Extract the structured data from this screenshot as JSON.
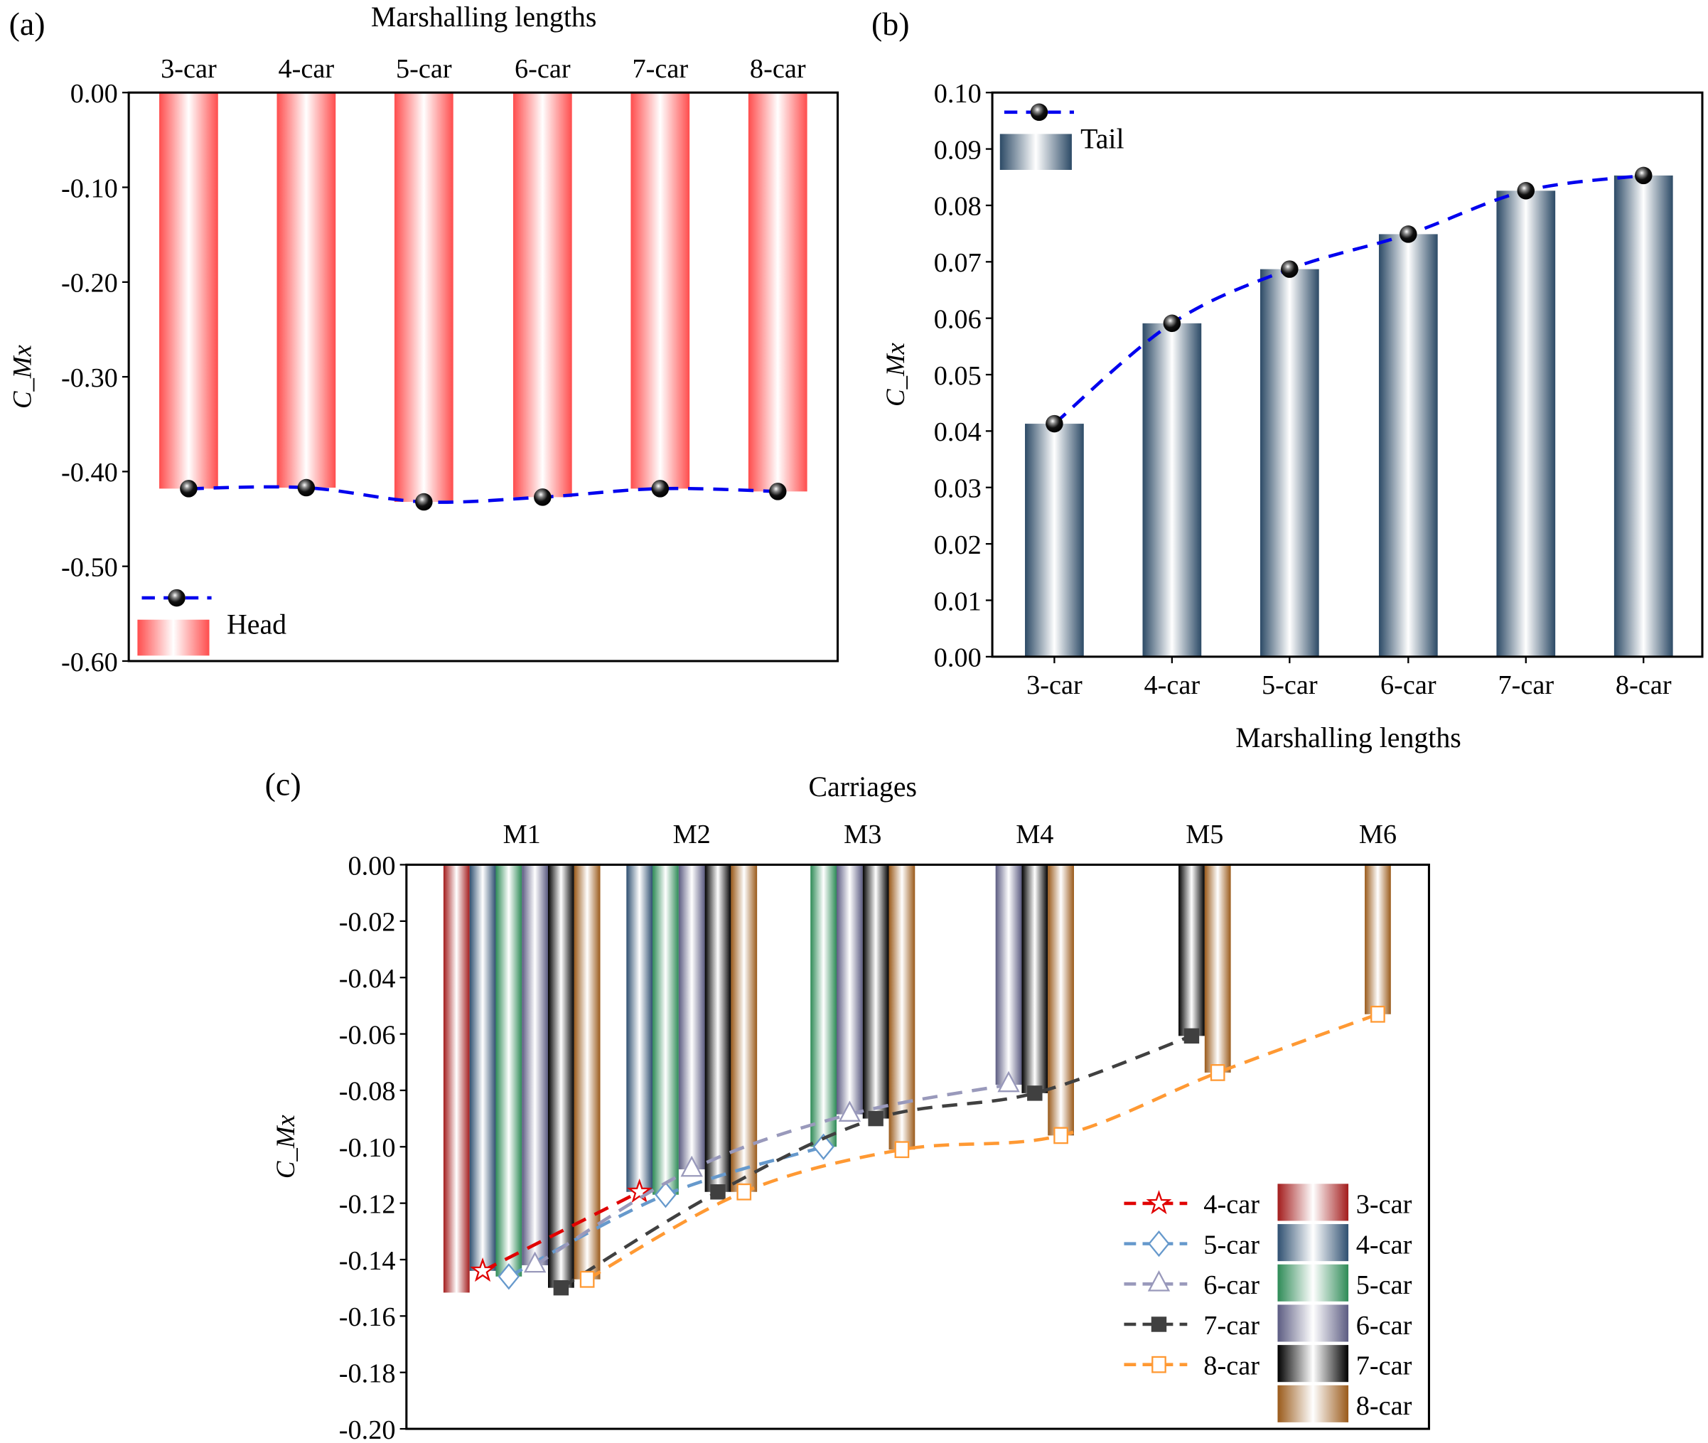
{
  "chart_data": [
    {
      "panel_label": "(a)",
      "type": "bar",
      "title": "",
      "xlabel": "Marshalling lengths",
      "xlabel_position": "top",
      "ylabel": "C_Mx",
      "ylim": [
        -0.6,
        0.0
      ],
      "yticks": [
        "0.00",
        "-0.10",
        "-0.20",
        "-0.30",
        "-0.40",
        "-0.50",
        "-0.60"
      ],
      "categories": [
        "3-car",
        "4-car",
        "5-car",
        "6-car",
        "7-car",
        "8-car"
      ],
      "series": [
        {
          "name": "Head",
          "values": [
            -0.418,
            -0.417,
            -0.432,
            -0.427,
            -0.418,
            -0.421
          ]
        }
      ],
      "line_overlay": {
        "style": "dashed",
        "marker": "sphere",
        "color": "#0000ee"
      },
      "bar_color": "#ff4d4d",
      "legend": "bottom-left",
      "grid": false
    },
    {
      "panel_label": "(b)",
      "type": "bar",
      "title": "",
      "xlabel": "Marshalling lengths",
      "ylabel": "C_Mx",
      "ylim": [
        0.0,
        0.1
      ],
      "yticks": [
        "0.00",
        "0.01",
        "0.02",
        "0.03",
        "0.04",
        "0.05",
        "0.06",
        "0.07",
        "0.08",
        "0.09",
        "0.10"
      ],
      "categories": [
        "3-car",
        "4-car",
        "5-car",
        "6-car",
        "7-car",
        "8-car"
      ],
      "series": [
        {
          "name": "Tail",
          "values": [
            0.0413,
            0.0591,
            0.0687,
            0.0749,
            0.0826,
            0.0853
          ]
        }
      ],
      "line_overlay": {
        "style": "dashed",
        "marker": "sphere",
        "color": "#0000ee"
      },
      "bar_color": "#2c4a66",
      "legend": "top-left",
      "grid": false
    },
    {
      "panel_label": "(c)",
      "type": "bar",
      "title": "",
      "xlabel": "Carriages",
      "xlabel_position": "top",
      "ylabel": "C_Mx",
      "ylim": [
        -0.2,
        0.0
      ],
      "yticks": [
        "0.00",
        "-0.02",
        "-0.04",
        "-0.06",
        "-0.08",
        "-0.10",
        "-0.12",
        "-0.14",
        "-0.16",
        "-0.18",
        "-0.20"
      ],
      "categories": [
        "M1",
        "M2",
        "M3",
        "M4",
        "M5",
        "M6"
      ],
      "series": [
        {
          "name": "3-car",
          "bar_color": "#a31c1c",
          "values": [
            -0.1517,
            null,
            null,
            null,
            null,
            null
          ]
        },
        {
          "name": "4-car",
          "bar_color": "#2f5071",
          "line_color": "#e00000",
          "marker": "star",
          "values": [
            -0.144,
            -0.116,
            null,
            null,
            null,
            null
          ]
        },
        {
          "name": "5-car",
          "bar_color": "#2e8b57",
          "line_color": "#6699cc",
          "marker": "diamond",
          "values": [
            -0.146,
            -0.117,
            -0.1,
            null,
            null,
            null
          ]
        },
        {
          "name": "6-car",
          "bar_color": "#5c5c82",
          "line_color": "#9999bb",
          "marker": "triangle",
          "values": [
            -0.142,
            -0.108,
            -0.0885,
            -0.078,
            null,
            null
          ]
        },
        {
          "name": "7-car",
          "bar_color": "#000000",
          "line_color": "#404040",
          "marker": "filled-square",
          "values": [
            -0.15,
            -0.116,
            -0.09,
            -0.081,
            -0.0607,
            null
          ]
        },
        {
          "name": "8-car",
          "bar_color": "#9a5a1a",
          "line_color": "#ff9933",
          "marker": "open-square",
          "values": [
            -0.147,
            -0.116,
            -0.101,
            -0.096,
            -0.0737,
            -0.053
          ]
        }
      ],
      "line_legend": [
        "4-car",
        "5-car",
        "6-car",
        "7-car",
        "8-car"
      ],
      "bar_legend": [
        "3-car",
        "4-car",
        "5-car",
        "6-car",
        "7-car",
        "8-car"
      ],
      "legend": "bottom-right",
      "grid": false
    }
  ]
}
